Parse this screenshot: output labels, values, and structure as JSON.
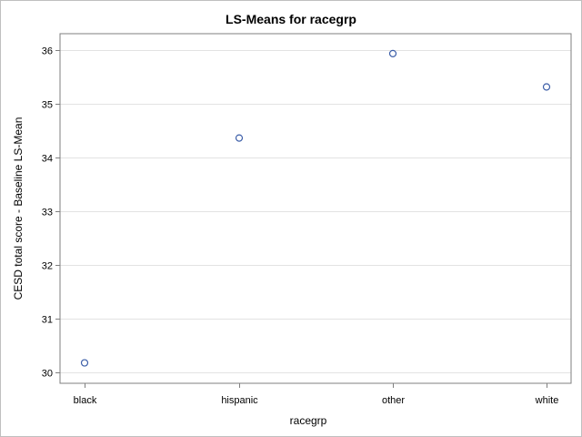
{
  "chart_data": {
    "type": "scatter",
    "title": "LS-Means for racegrp",
    "xlabel": "racegrp",
    "ylabel": "CESD total score - Baseline LS-Mean",
    "categories": [
      "black",
      "hispanic",
      "other",
      "white"
    ],
    "values": [
      30.18,
      34.36,
      35.93,
      35.31
    ],
    "ylim": [
      29.8,
      36.3
    ],
    "yticks": [
      30,
      31,
      32,
      33,
      34,
      35,
      36
    ],
    "grid": true,
    "marker_color": "#3c5ea8"
  }
}
